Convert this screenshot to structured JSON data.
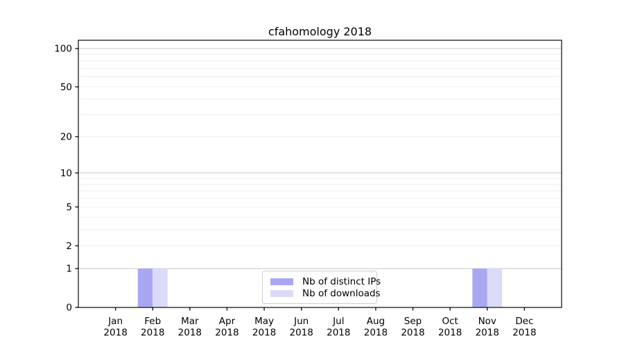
{
  "chart_data": {
    "type": "bar",
    "title": "cfahomology 2018",
    "categories": [
      "Jan 2018",
      "Feb 2018",
      "Mar 2018",
      "Apr 2018",
      "May 2018",
      "Jun 2018",
      "Jul 2018",
      "Aug 2018",
      "Sep 2018",
      "Oct 2018",
      "Nov 2018",
      "Dec 2018"
    ],
    "series": [
      {
        "name": "Nb of distinct IPs",
        "color": "#a8a8f2",
        "values": [
          0,
          1,
          0,
          0,
          0,
          0,
          0,
          0,
          0,
          0,
          1,
          0
        ]
      },
      {
        "name": "Nb of downloads",
        "color": "#dbdbf8",
        "values": [
          0,
          1,
          0,
          0,
          0,
          0,
          0,
          0,
          0,
          0,
          1,
          0
        ]
      }
    ],
    "xlabel": "",
    "ylabel": "",
    "yscale": "log1p",
    "ylim": [
      0,
      116
    ],
    "yticks": [
      0,
      1,
      2,
      5,
      10,
      20,
      50,
      100
    ],
    "major_gridlines": [
      1,
      10,
      100
    ],
    "minor_gridlines": [
      2,
      3,
      4,
      5,
      6,
      7,
      8,
      9,
      20,
      30,
      40,
      50,
      60,
      70,
      80,
      90
    ],
    "grid": true,
    "legend_position": "lower center",
    "colors": {
      "major_grid": "#c6c6c6",
      "minor_grid": "#ededed",
      "spine": "#1a1a1a",
      "tick": "#000000",
      "background": "#ffffff"
    }
  }
}
